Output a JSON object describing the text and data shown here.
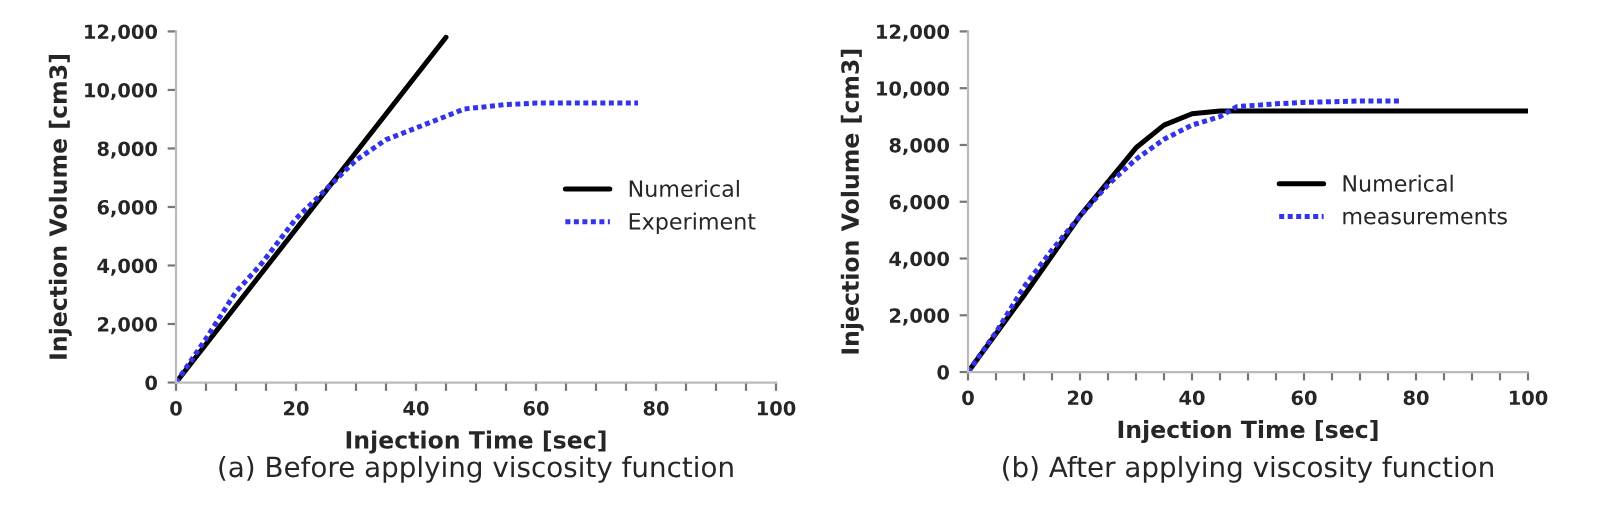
{
  "chart_data": [
    {
      "type": "line",
      "xlabel": "Injection Time [sec]",
      "ylabel": "Injection Volume [cm3]",
      "annotations": [
        "(a) Before applying viscosity function"
      ],
      "xlim": [
        0,
        100
      ],
      "ylim": [
        0,
        12000
      ],
      "xticks": [
        0,
        {
          "value": 5,
          "label": null
        },
        {
          "value": 10,
          "label": null
        },
        {
          "value": 15,
          "label": null
        },
        20,
        {
          "value": 25,
          "label": null
        },
        {
          "value": 30,
          "label": null
        },
        {
          "value": 35,
          "label": null
        },
        40,
        {
          "value": 45,
          "label": null
        },
        {
          "value": 50,
          "label": null
        },
        {
          "value": 55,
          "label": null
        },
        60,
        {
          "value": 65,
          "label": null
        },
        {
          "value": 70,
          "label": null
        },
        {
          "value": 75,
          "label": null
        },
        80,
        {
          "value": 85,
          "label": null
        },
        {
          "value": 90,
          "label": null
        },
        {
          "value": 95,
          "label": null
        },
        100
      ],
      "yticks": [
        {
          "value": 0,
          "label": "0"
        },
        {
          "value": 2000,
          "label": "2,000"
        },
        {
          "value": 4000,
          "label": "4,000"
        },
        {
          "value": 6000,
          "label": "6,000"
        },
        {
          "value": 8000,
          "label": "8,000"
        },
        {
          "value": 10000,
          "label": "10,000"
        },
        {
          "value": 12000,
          "label": "12,000"
        }
      ],
      "grid": false,
      "legend": "right",
      "series": [
        {
          "name": "Numerical",
          "color": "#000000",
          "line_style": "solid",
          "x": [
            0,
            45
          ],
          "values": [
            0,
            11800
          ]
        },
        {
          "name": "Experiment",
          "color": "#3333ee",
          "line_style": "dotted",
          "x": [
            0,
            5,
            10,
            14,
            20,
            24,
            27,
            30,
            35,
            40,
            45,
            48,
            55,
            60,
            77
          ],
          "values": [
            0,
            1500,
            3100,
            4000,
            5600,
            6400,
            7000,
            7600,
            8300,
            8700,
            9100,
            9350,
            9500,
            9550,
            9550
          ]
        }
      ]
    },
    {
      "type": "line",
      "xlabel": "Injection Time [sec]",
      "ylabel": "Injection Volume [cm3]",
      "annotations": [
        "(b) After applying viscosity function"
      ],
      "xlim": [
        0,
        100
      ],
      "ylim": [
        0,
        12000
      ],
      "xticks": [
        0,
        {
          "value": 5,
          "label": null
        },
        {
          "value": 10,
          "label": null
        },
        {
          "value": 15,
          "label": null
        },
        20,
        {
          "value": 25,
          "label": null
        },
        {
          "value": 30,
          "label": null
        },
        {
          "value": 35,
          "label": null
        },
        40,
        {
          "value": 45,
          "label": null
        },
        {
          "value": 50,
          "label": null
        },
        {
          "value": 55,
          "label": null
        },
        60,
        {
          "value": 65,
          "label": null
        },
        {
          "value": 70,
          "label": null
        },
        {
          "value": 75,
          "label": null
        },
        80,
        {
          "value": 85,
          "label": null
        },
        {
          "value": 90,
          "label": null
        },
        {
          "value": 95,
          "label": null
        },
        100
      ],
      "yticks": [
        {
          "value": 0,
          "label": "0"
        },
        {
          "value": 2000,
          "label": "2,000"
        },
        {
          "value": 4000,
          "label": "4,000"
        },
        {
          "value": 6000,
          "label": "6,000"
        },
        {
          "value": 8000,
          "label": "8,000"
        },
        {
          "value": 10000,
          "label": "10,000"
        },
        {
          "value": 12000,
          "label": "12,000"
        }
      ],
      "grid": false,
      "legend": "right",
      "series": [
        {
          "name": "Numerical",
          "color": "#000000",
          "line_style": "solid",
          "x": [
            0,
            10,
            20,
            25,
            30,
            35,
            40,
            45,
            50,
            100
          ],
          "values": [
            0,
            2700,
            5500,
            6700,
            7900,
            8700,
            9100,
            9200,
            9200,
            9200
          ]
        },
        {
          "name": "measurements",
          "color": "#3333ee",
          "line_style": "dotted",
          "x": [
            0,
            5,
            10,
            15,
            20,
            25,
            30,
            35,
            40,
            45,
            48,
            55,
            60,
            70,
            77
          ],
          "values": [
            0,
            1400,
            3000,
            4300,
            5500,
            6600,
            7500,
            8200,
            8700,
            9000,
            9350,
            9450,
            9500,
            9550,
            9550
          ]
        }
      ]
    }
  ]
}
